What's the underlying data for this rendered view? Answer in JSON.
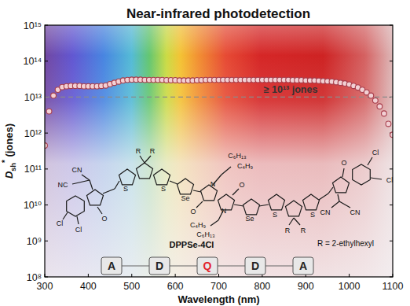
{
  "chart_data": {
    "type": "scatter",
    "title": "Near-infrared photodetection",
    "x_label": "Wavelength (nm)",
    "y_label": {
      "main": "D",
      "sub": "sh",
      "sup": "*",
      "unit": "(jones)"
    },
    "x": [
      300,
      310,
      320,
      330,
      340,
      350,
      360,
      370,
      380,
      390,
      400,
      410,
      420,
      430,
      440,
      450,
      460,
      470,
      480,
      490,
      500,
      510,
      520,
      530,
      540,
      550,
      560,
      570,
      580,
      590,
      600,
      610,
      620,
      630,
      640,
      650,
      660,
      670,
      680,
      690,
      700,
      710,
      720,
      730,
      740,
      750,
      760,
      770,
      780,
      790,
      800,
      810,
      820,
      830,
      840,
      850,
      860,
      870,
      880,
      890,
      900,
      910,
      920,
      930,
      940,
      950,
      960,
      970,
      980,
      990,
      1000,
      1010,
      1020,
      1030,
      1040,
      1050,
      1060,
      1070,
      1080,
      1090,
      1100
    ],
    "values": [
      450000000000.0,
      4000000000000.0,
      11000000000000.0,
      16000000000000.0,
      19000000000000.0,
      20000000000000.0,
      20500000000000.0,
      20500000000000.0,
      20500000000000.0,
      20000000000000.0,
      20000000000000.0,
      20000000000000.0,
      20000000000000.0,
      20500000000000.0,
      21000000000000.0,
      23000000000000.0,
      25000000000000.0,
      27000000000000.0,
      29000000000000.0,
      30000000000000.0,
      30500000000000.0,
      30500000000000.0,
      30500000000000.0,
      30000000000000.0,
      30000000000000.0,
      30000000000000.0,
      30000000000000.0,
      30000000000000.0,
      29500000000000.0,
      29500000000000.0,
      29500000000000.0,
      29000000000000.0,
      29000000000000.0,
      29000000000000.0,
      29000000000000.0,
      29500000000000.0,
      29500000000000.0,
      30000000000000.0,
      30000000000000.0,
      30000000000000.0,
      30000000000000.0,
      30000000000000.0,
      30000000000000.0,
      30000000000000.0,
      30000000000000.0,
      30000000000000.0,
      30000000000000.0,
      30000000000000.0,
      30000000000000.0,
      30000000000000.0,
      30000000000000.0,
      30000000000000.0,
      30000000000000.0,
      30000000000000.0,
      30000000000000.0,
      30000000000000.0,
      30000000000000.0,
      29500000000000.0,
      29500000000000.0,
      29500000000000.0,
      29000000000000.0,
      29000000000000.0,
      29000000000000.0,
      28500000000000.0,
      28000000000000.0,
      27500000000000.0,
      27000000000000.0,
      26000000000000.0,
      25000000000000.0,
      24000000000000.0,
      22500000000000.0,
      20500000000000.0,
      18500000000000.0,
      16000000000000.0,
      13500000000000.0,
      11000000000000.0,
      8000000000000.0,
      5500000000000.0,
      3500000000000.0,
      1800000000000.0,
      900000000000.0
    ],
    "color": "#f2d0d4",
    "marker": "circle",
    "log": "y",
    "grid": false,
    "xlim": [
      300,
      1100
    ],
    "xticks": [
      300,
      400,
      500,
      600,
      700,
      800,
      900,
      1000,
      1100
    ],
    "ylim": [
      100000000.0,
      1000000000000000.0
    ],
    "yticks": [
      {
        "value": 100000000.0,
        "label": "10⁸"
      },
      {
        "value": 1000000000.0,
        "label": "10⁹"
      },
      {
        "value": 10000000000.0,
        "label": "10¹⁰"
      },
      {
        "value": 100000000000.0,
        "label": "10¹¹"
      },
      {
        "value": 1000000000000.0,
        "label": "10¹²"
      },
      {
        "value": 10000000000000.0,
        "label": "10¹³"
      },
      {
        "value": 100000000000000.0,
        "label": "10¹⁴"
      },
      {
        "value": 1000000000000000.0,
        "label": "10¹⁵"
      }
    ],
    "reference_lines": [
      {
        "value": 10000000000000.0,
        "label": "≥ 10¹³ jones"
      }
    ],
    "molecule": {
      "name": "DPPSe-4Cl",
      "substituent_note": "R = 2-ethylhexyl",
      "atom_labels": [
        "Cl",
        "Cl",
        "CN",
        "NC",
        "O",
        "R",
        "R",
        "S",
        "S",
        "Se",
        "N",
        "N",
        "O",
        "O",
        "C₆H₁₃",
        "C₄H₉",
        "C₄H₉",
        "C₆H₁₃",
        "Se",
        "S",
        "S",
        "R",
        "R",
        "O",
        "CN",
        "CN",
        "Cl",
        "Cl"
      ]
    },
    "schematic": {
      "blocks": [
        {
          "label": "A"
        },
        {
          "label": "D"
        },
        {
          "label": "Q",
          "color": "#e3202a"
        },
        {
          "label": "D"
        },
        {
          "label": "A"
        }
      ]
    }
  }
}
